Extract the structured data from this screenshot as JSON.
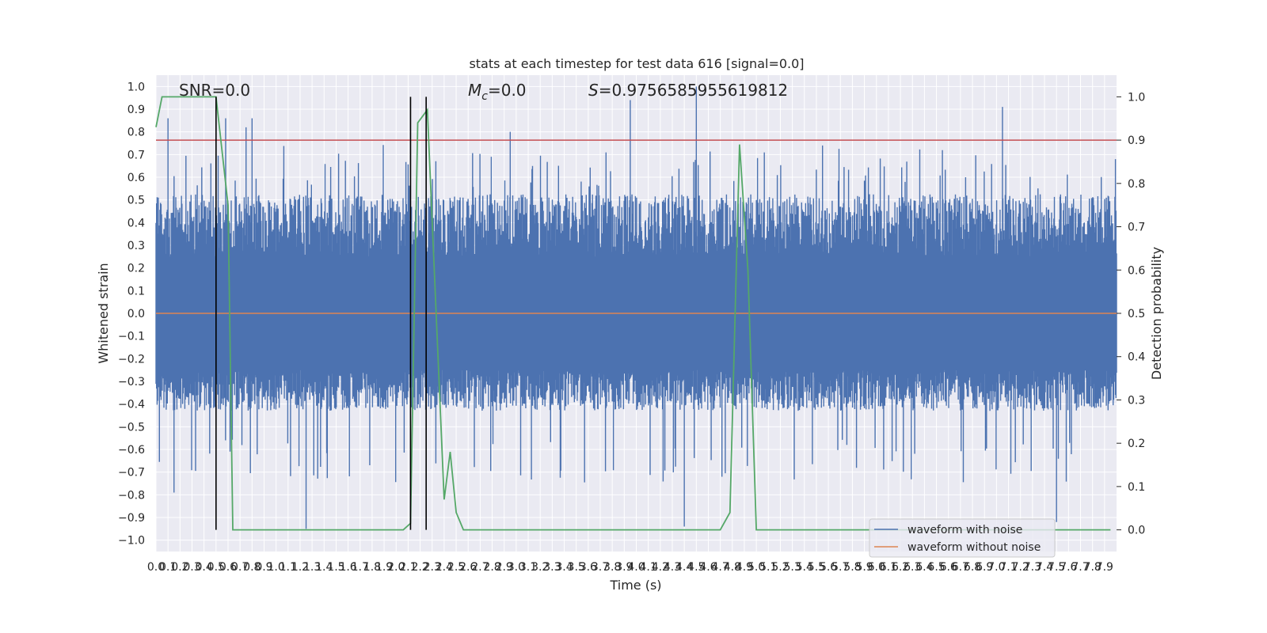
{
  "chart_data": {
    "type": "line",
    "title": "stats at each timestep for test data 616 [signal=0.0]",
    "xlabel": "Time (s)",
    "ylabel": "Whitened strain",
    "ylabel_right": "Detection probability",
    "xlim": [
      0,
      8.0
    ],
    "ylim": [
      -1.05,
      1.05
    ],
    "ylim_right": [
      -0.05,
      1.05
    ],
    "grid": true,
    "legend_position": "lower right",
    "x_ticks": [
      "0.0",
      "0.1",
      "0.2",
      "0.3",
      "0.4",
      "0.5",
      "0.6",
      "0.7",
      "0.8",
      "0.9",
      "1.0",
      "1.1",
      "1.2",
      "1.3",
      "1.4",
      "1.5",
      "1.6",
      "1.7",
      "1.8",
      "1.9",
      "2.0",
      "2.1",
      "2.2",
      "2.3",
      "2.4",
      "2.5",
      "2.6",
      "2.7",
      "2.8",
      "2.9",
      "3.0",
      "3.1",
      "3.2",
      "3.3",
      "3.4",
      "3.5",
      "3.6",
      "3.7",
      "3.8",
      "3.9",
      "4.0",
      "4.1",
      "4.2",
      "4.3",
      "4.4",
      "4.5",
      "4.6",
      "4.7",
      "4.8",
      "4.9",
      "5.0",
      "5.1",
      "5.2",
      "5.3",
      "5.4",
      "5.5",
      "5.6",
      "5.7",
      "5.8",
      "5.9",
      "6.0",
      "6.1",
      "6.2",
      "6.3",
      "6.4",
      "6.5",
      "6.6",
      "6.7",
      "6.8",
      "6.9",
      "7.0",
      "7.1",
      "7.2",
      "7.3",
      "7.4",
      "7.5",
      "7.6",
      "7.7",
      "7.8",
      "7.9"
    ],
    "y_ticks_left": [
      "1.0",
      "0.9",
      "0.8",
      "0.7",
      "0.6",
      "0.5",
      "0.4",
      "0.3",
      "0.2",
      "0.1",
      "0.0",
      "-0.1",
      "-0.2",
      "-0.3",
      "-0.4",
      "-0.5",
      "-0.6",
      "-0.7",
      "-0.8",
      "-0.9",
      "-1.0"
    ],
    "y_ticks_right": [
      "1.0",
      "0.9",
      "0.8",
      "0.7",
      "0.6",
      "0.5",
      "0.4",
      "0.3",
      "0.2",
      "0.1",
      "0.0"
    ],
    "annotations": {
      "snr": "SNR=0.0",
      "mc_symbol": "M",
      "mc_sub": "c",
      "mc_value": "=0.0",
      "s_symbol": "S",
      "s_value": "=0.9756585955619812"
    },
    "series": [
      {
        "name": "waveform with noise",
        "color": "#4c72b0",
        "description_type": "noise",
        "envelope_typical": [
          -0.4,
          0.5
        ],
        "peaks": [
          {
            "x": 0.1,
            "y": 0.86
          },
          {
            "x": 0.15,
            "y": -0.79
          },
          {
            "x": 0.58,
            "y": 0.86
          },
          {
            "x": 0.75,
            "y": 0.82
          },
          {
            "x": 0.8,
            "y": 0.86
          },
          {
            "x": 1.25,
            "y": -0.95
          },
          {
            "x": 2.95,
            "y": 0.8
          },
          {
            "x": 3.95,
            "y": 0.94
          },
          {
            "x": 4.4,
            "y": -0.94
          },
          {
            "x": 4.5,
            "y": 1.0
          },
          {
            "x": 7.05,
            "y": 0.91
          },
          {
            "x": 7.5,
            "y": -0.92
          }
        ]
      },
      {
        "name": "waveform without noise",
        "color": "#dd8452",
        "x": [
          0,
          8.0
        ],
        "y": [
          0.0,
          0.0
        ]
      },
      {
        "name": "",
        "color": "#55a868",
        "axis": "right",
        "x": [
          0.0,
          0.05,
          0.1,
          0.5,
          0.6,
          0.64,
          2.06,
          2.12,
          2.18,
          2.26,
          2.4,
          2.45,
          2.5,
          2.56,
          2.6,
          4.7,
          4.78,
          4.86,
          4.93,
          5.0,
          7.95
        ],
        "y": [
          0.93,
          1.0,
          1.0,
          1.0,
          0.75,
          0.0,
          0.0,
          0.015,
          0.94,
          0.97,
          0.07,
          0.18,
          0.04,
          0.0,
          0.0,
          0.0,
          0.04,
          0.89,
          0.6,
          0.0,
          0.0
        ]
      }
    ],
    "threshold_line": {
      "axis": "right",
      "y": 0.9,
      "color": "#c44e52"
    },
    "vertical_markers": {
      "color": "#000000",
      "x": [
        0.5,
        2.12,
        2.25
      ],
      "y_range_right": [
        0.0,
        1.0
      ]
    }
  }
}
